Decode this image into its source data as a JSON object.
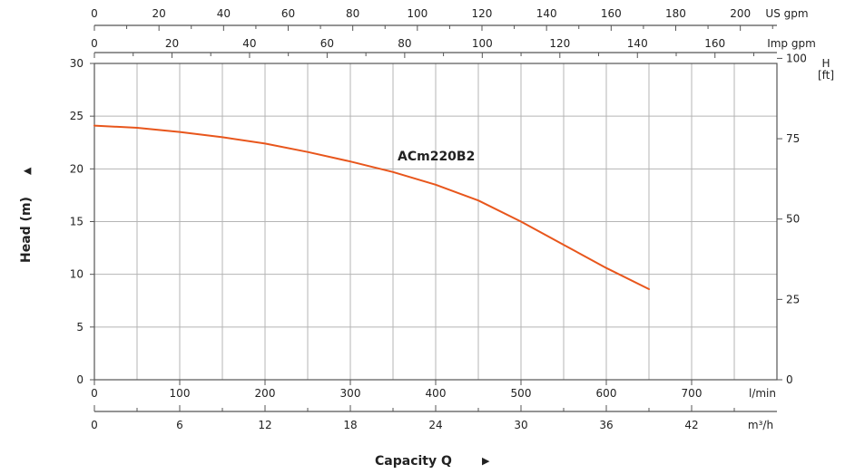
{
  "chart_data": {
    "type": "line",
    "title": "",
    "xlabel": "Capacity Q",
    "ylabel": "Head (m)",
    "xlim": [
      0,
      800
    ],
    "ylim": [
      0,
      30
    ],
    "grid": true,
    "series": [
      {
        "name": "ACm220B2",
        "color": "#e8561c",
        "x": [
          0,
          50,
          100,
          150,
          200,
          250,
          300,
          350,
          400,
          450,
          500,
          550,
          600,
          650
        ],
        "y": [
          24.1,
          23.9,
          23.5,
          23.0,
          22.4,
          21.6,
          20.7,
          19.7,
          18.5,
          17.0,
          15.0,
          12.8,
          10.6,
          8.6
        ]
      }
    ],
    "axes": {
      "bottom_primary": {
        "unit": "l/min",
        "ticks": [
          "0",
          "100",
          "200",
          "300",
          "400",
          "500",
          "600",
          "700"
        ],
        "tick_values": [
          0,
          100,
          200,
          300,
          400,
          500,
          600,
          700
        ]
      },
      "bottom_secondary": {
        "unit": "m³/h",
        "ticks": [
          "0",
          "6",
          "12",
          "18",
          "24",
          "30",
          "36",
          "42"
        ],
        "tick_values": [
          0,
          6,
          12,
          18,
          24,
          30,
          36,
          42
        ]
      },
      "top_us": {
        "unit": "US gpm",
        "ticks": [
          "0",
          "20",
          "40",
          "60",
          "80",
          "100",
          "120",
          "140",
          "160",
          "180",
          "200"
        ],
        "tick_values": [
          0,
          20,
          40,
          60,
          80,
          100,
          120,
          140,
          160,
          180,
          200
        ]
      },
      "top_imp": {
        "unit": "Imp gpm",
        "ticks": [
          "0",
          "20",
          "40",
          "60",
          "80",
          "100",
          "120",
          "140",
          "160"
        ],
        "tick_values": [
          0,
          20,
          40,
          60,
          80,
          100,
          120,
          140,
          160
        ]
      },
      "left": {
        "unit": "m",
        "ticks": [
          "0",
          "5",
          "10",
          "15",
          "20",
          "25",
          "30"
        ],
        "tick_values": [
          0,
          5,
          10,
          15,
          20,
          25,
          30
        ]
      },
      "right": {
        "unit_top": "H",
        "unit_bottom": "[ft]",
        "ticks": [
          "0",
          "25",
          "50",
          "75",
          "100"
        ],
        "tick_values": [
          0,
          25,
          50,
          75,
          100
        ]
      }
    },
    "arrow_glyph": "▶",
    "up_arrow_glyph": "▲"
  }
}
